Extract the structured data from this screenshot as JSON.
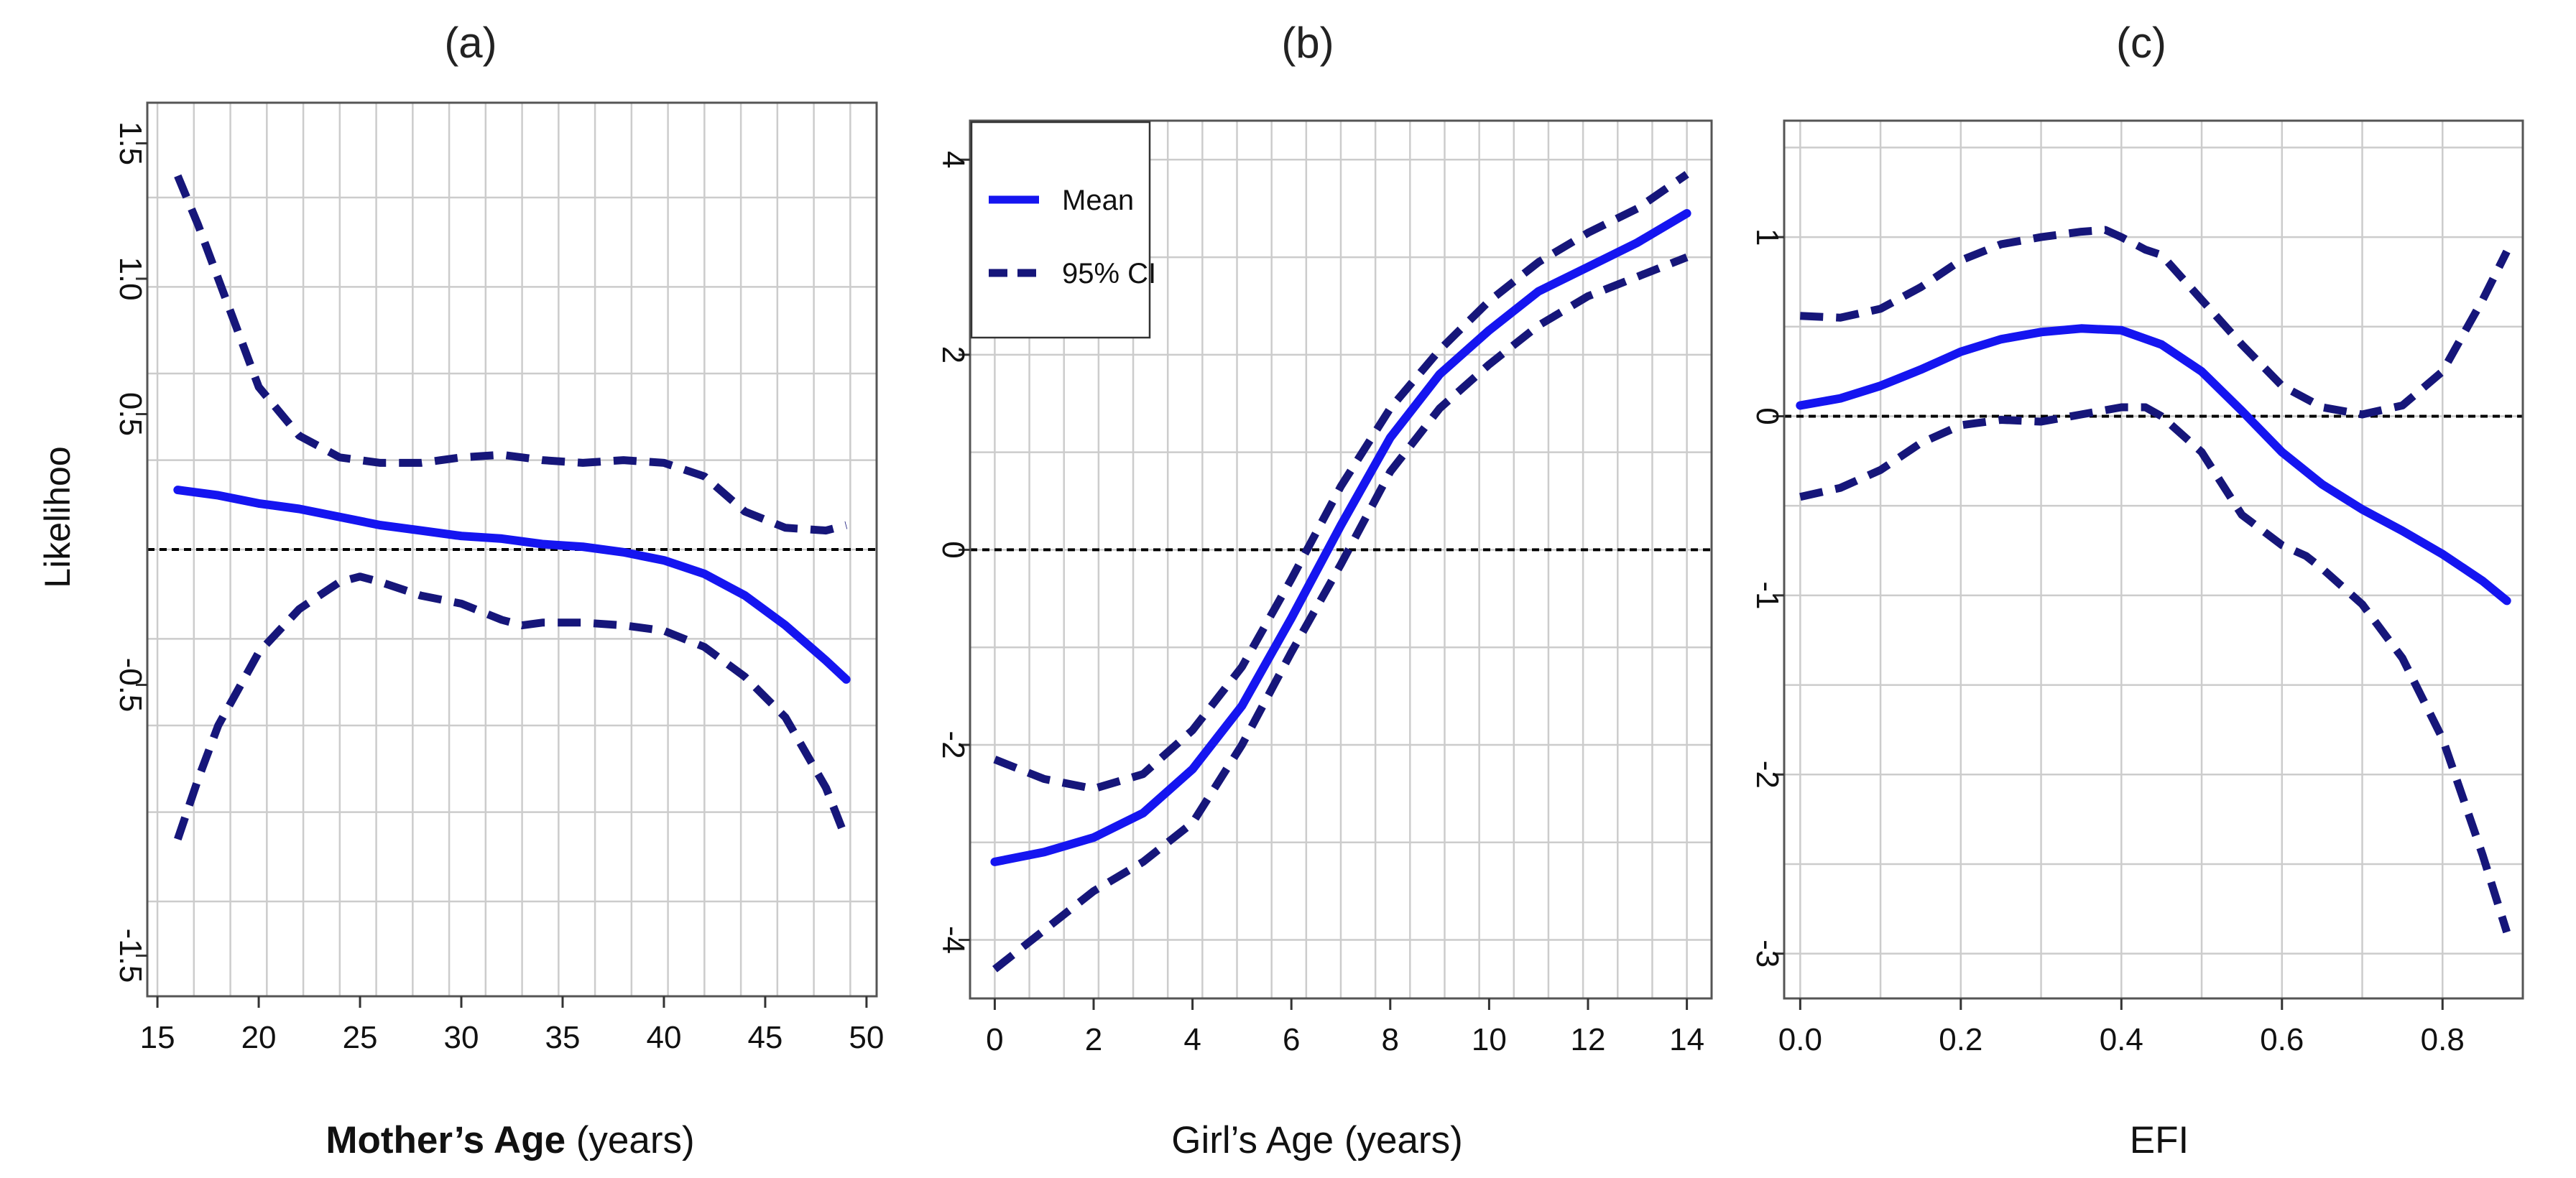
{
  "y_label": "Likelihoo",
  "colors": {
    "mean": "#1515f0",
    "ci": "#16167a",
    "grid": "#cccccc",
    "zero": "#000000"
  },
  "legend": {
    "mean_label": "Mean",
    "ci_label": "95% CI"
  },
  "chart_data": [
    {
      "type": "line",
      "title": "(a)",
      "xlabel_bold": "Mother’s Age",
      "xlabel_rest": " (years)",
      "ylabel": "Likelihoo",
      "xlim": [
        14.5,
        50.5
      ],
      "ylim": [
        -1.65,
        1.65
      ],
      "xticks": [
        15,
        20,
        25,
        30,
        35,
        40,
        45,
        50
      ],
      "yticks": [
        -1.5,
        -0.5,
        0.5,
        1.0,
        1.5
      ],
      "ytick_labels": [
        "-1.5",
        "-0.5",
        "0.5",
        "1.0",
        "1.5"
      ],
      "xgrid": [
        15,
        16.8,
        18.6,
        20.4,
        22.2,
        24,
        25.8,
        27.6,
        29.4,
        31.2,
        33,
        34.8,
        36.6,
        38.4,
        40.2,
        42,
        43.8,
        45.6,
        47.4,
        49.2
      ],
      "ygrid": [
        -1.3,
        -0.97,
        -0.65,
        -0.33,
        0,
        0.33,
        0.65,
        0.97,
        1.3
      ],
      "zero_line": 0,
      "series": [
        {
          "name": "Mean",
          "x": [
            16,
            18,
            20,
            22,
            24,
            26,
            28,
            30,
            32,
            34,
            36,
            38,
            40,
            42,
            44,
            46,
            48,
            49
          ],
          "y": [
            0.22,
            0.2,
            0.17,
            0.15,
            0.12,
            0.09,
            0.07,
            0.05,
            0.04,
            0.02,
            0.01,
            -0.01,
            -0.04,
            -0.09,
            -0.17,
            -0.28,
            -0.41,
            -0.48
          ]
        },
        {
          "name": "Upper",
          "x": [
            16,
            17,
            18,
            20,
            22,
            24,
            25,
            26,
            28,
            30,
            32,
            33,
            34,
            36,
            38,
            40,
            42,
            44,
            46,
            48,
            49
          ],
          "y": [
            1.38,
            1.2,
            1.0,
            0.6,
            0.42,
            0.34,
            0.33,
            0.32,
            0.32,
            0.34,
            0.35,
            0.34,
            0.33,
            0.32,
            0.33,
            0.32,
            0.27,
            0.14,
            0.08,
            0.07,
            0.09
          ]
        },
        {
          "name": "Lower",
          "x": [
            16,
            17,
            18,
            20,
            22,
            24,
            25,
            26,
            28,
            30,
            32,
            33,
            34,
            36,
            38,
            40,
            42,
            44,
            46,
            48,
            49
          ],
          "y": [
            -1.07,
            -0.85,
            -0.65,
            -0.38,
            -0.22,
            -0.12,
            -0.1,
            -0.12,
            -0.17,
            -0.2,
            -0.26,
            -0.28,
            -0.27,
            -0.27,
            -0.28,
            -0.3,
            -0.36,
            -0.47,
            -0.62,
            -0.88,
            -1.07
          ]
        }
      ]
    },
    {
      "type": "line",
      "title": "(b)",
      "xlabel": "Girl’s Age (years)",
      "xlim": [
        -0.5,
        14.5
      ],
      "ylim": [
        -4.6,
        4.4
      ],
      "xticks": [
        0,
        2,
        4,
        6,
        8,
        10,
        12,
        14
      ],
      "yticks": [
        -4,
        -2,
        0,
        2,
        4
      ],
      "ytick_labels": [
        "-4",
        "-2",
        "0",
        "2",
        "4"
      ],
      "xgrid": [
        0,
        0.7,
        1.4,
        2.1,
        2.8,
        3.5,
        4.2,
        4.9,
        5.6,
        6.3,
        7,
        7.7,
        8.4,
        9.1,
        9.8,
        10.5,
        11.2,
        11.9,
        12.6,
        13.3,
        14
      ],
      "ygrid": [
        -4,
        -3,
        -2,
        -1,
        0,
        1,
        2,
        3,
        4
      ],
      "zero_line": 0,
      "series": [
        {
          "name": "Mean",
          "x": [
            0,
            1,
            2,
            3,
            4,
            5,
            6,
            7,
            8,
            9,
            10,
            11,
            12,
            13,
            14
          ],
          "y": [
            -3.2,
            -3.1,
            -2.95,
            -2.7,
            -2.25,
            -1.6,
            -0.7,
            0.25,
            1.15,
            1.8,
            2.25,
            2.65,
            2.9,
            3.15,
            3.45
          ]
        },
        {
          "name": "Upper",
          "x": [
            0,
            1,
            2,
            3,
            4,
            5,
            6,
            7,
            8,
            9,
            10,
            11,
            12,
            13,
            14
          ],
          "y": [
            -2.15,
            -2.35,
            -2.45,
            -2.3,
            -1.85,
            -1.2,
            -0.3,
            0.65,
            1.45,
            2.05,
            2.55,
            2.95,
            3.25,
            3.5,
            3.85
          ]
        },
        {
          "name": "Lower",
          "x": [
            0,
            1,
            2,
            3,
            4,
            5,
            6,
            7,
            8,
            9,
            10,
            11,
            12,
            13,
            14
          ],
          "y": [
            -4.3,
            -3.9,
            -3.5,
            -3.2,
            -2.8,
            -2.0,
            -1.05,
            -0.15,
            0.8,
            1.45,
            1.9,
            2.3,
            2.6,
            2.8,
            3.0
          ]
        }
      ]
    },
    {
      "type": "line",
      "title": "(c)",
      "xlabel": "EFI",
      "xlim": [
        -0.02,
        0.9
      ],
      "ylim": [
        -3.25,
        1.65
      ],
      "xticks": [
        0.0,
        0.2,
        0.4,
        0.6,
        0.8
      ],
      "xtick_labels": [
        "0.0",
        "0.2",
        "0.4",
        "0.6",
        "0.8"
      ],
      "yticks": [
        -3,
        -2,
        -1,
        0,
        1
      ],
      "ytick_labels": [
        "-3",
        "-2",
        "-1",
        "0",
        "1"
      ],
      "xgrid": [
        0,
        0.1,
        0.2,
        0.3,
        0.4,
        0.5,
        0.6,
        0.7,
        0.8
      ],
      "ygrid": [
        -3,
        -2.5,
        -2,
        -1.5,
        -1,
        -0.5,
        0,
        0.5,
        1,
        1.5
      ],
      "zero_line": 0,
      "series": [
        {
          "name": "Mean",
          "x": [
            0,
            0.05,
            0.1,
            0.15,
            0.2,
            0.25,
            0.3,
            0.35,
            0.4,
            0.45,
            0.5,
            0.55,
            0.6,
            0.65,
            0.7,
            0.75,
            0.8,
            0.85,
            0.88
          ],
          "y": [
            0.06,
            0.1,
            0.17,
            0.26,
            0.36,
            0.43,
            0.47,
            0.49,
            0.48,
            0.4,
            0.25,
            0.03,
            -0.2,
            -0.38,
            -0.52,
            -0.64,
            -0.77,
            -0.92,
            -1.03
          ]
        },
        {
          "name": "Upper",
          "x": [
            0,
            0.05,
            0.1,
            0.15,
            0.2,
            0.25,
            0.3,
            0.35,
            0.38,
            0.4,
            0.43,
            0.45,
            0.5,
            0.55,
            0.6,
            0.65,
            0.7,
            0.75,
            0.8,
            0.85,
            0.88
          ],
          "y": [
            0.56,
            0.55,
            0.6,
            0.72,
            0.87,
            0.96,
            1.0,
            1.03,
            1.04,
            1.0,
            0.93,
            0.9,
            0.65,
            0.4,
            0.17,
            0.05,
            0.01,
            0.06,
            0.25,
            0.65,
            0.92
          ]
        },
        {
          "name": "Lower",
          "x": [
            0,
            0.05,
            0.1,
            0.15,
            0.2,
            0.25,
            0.3,
            0.35,
            0.4,
            0.43,
            0.45,
            0.5,
            0.55,
            0.6,
            0.63,
            0.65,
            0.7,
            0.75,
            0.8,
            0.85,
            0.88
          ],
          "y": [
            -0.45,
            -0.4,
            -0.3,
            -0.15,
            -0.05,
            -0.02,
            -0.03,
            0.01,
            0.05,
            0.05,
            0.0,
            -0.2,
            -0.55,
            -0.72,
            -0.78,
            -0.85,
            -1.05,
            -1.35,
            -1.8,
            -2.45,
            -2.88
          ]
        }
      ]
    }
  ]
}
